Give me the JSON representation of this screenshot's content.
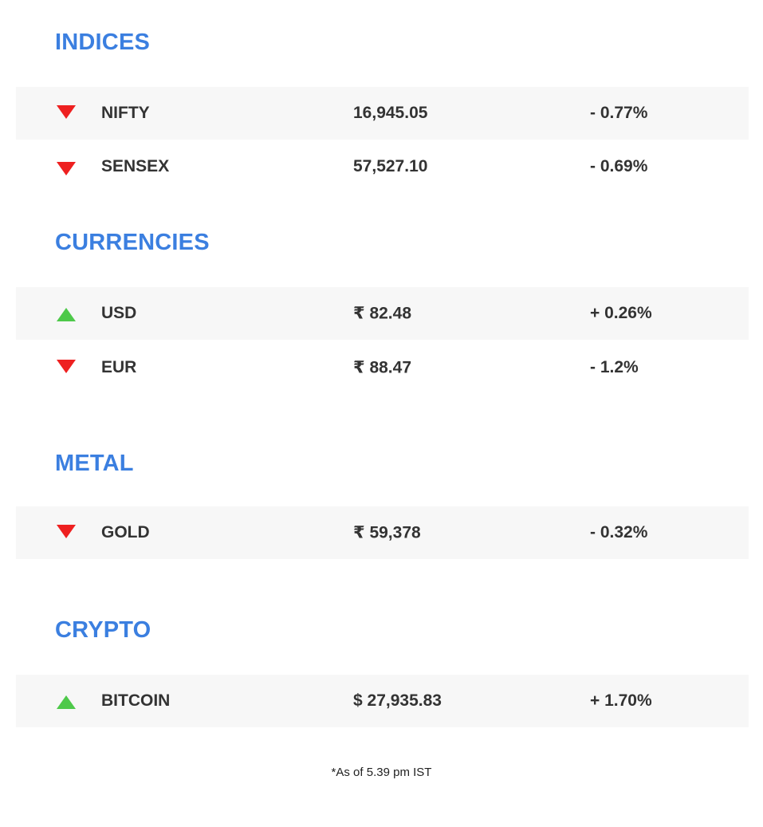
{
  "sections": [
    {
      "title": "INDICES",
      "rows": [
        {
          "name": "NIFTY",
          "value": "16,945.05",
          "change": "- 0.77%",
          "direction": "down"
        },
        {
          "name": "SENSEX",
          "value": "57,527.10",
          "change": "- 0.69%",
          "direction": "down"
        }
      ]
    },
    {
      "title": "CURRENCIES",
      "rows": [
        {
          "name": "USD",
          "value": "₹ 82.48",
          "change": "+ 0.26%",
          "direction": "up"
        },
        {
          "name": "EUR",
          "value": "₹ 88.47",
          "change": "- 1.2%",
          "direction": "down"
        }
      ]
    },
    {
      "title": "METAL",
      "rows": [
        {
          "name": "GOLD",
          "value": "₹ 59,378",
          "change": "- 0.32%",
          "direction": "down"
        }
      ]
    },
    {
      "title": "CRYPTO",
      "rows": [
        {
          "name": "BITCOIN",
          "value": "$ 27,935.83",
          "change": "+ 1.70%",
          "direction": "up"
        }
      ]
    }
  ],
  "footnote": "*As of 5.39 pm IST",
  "colors": {
    "heading": "#3b7fe0",
    "down": "#ee2020",
    "up": "#4ec94a",
    "row_shade": "#f7f7f7"
  }
}
